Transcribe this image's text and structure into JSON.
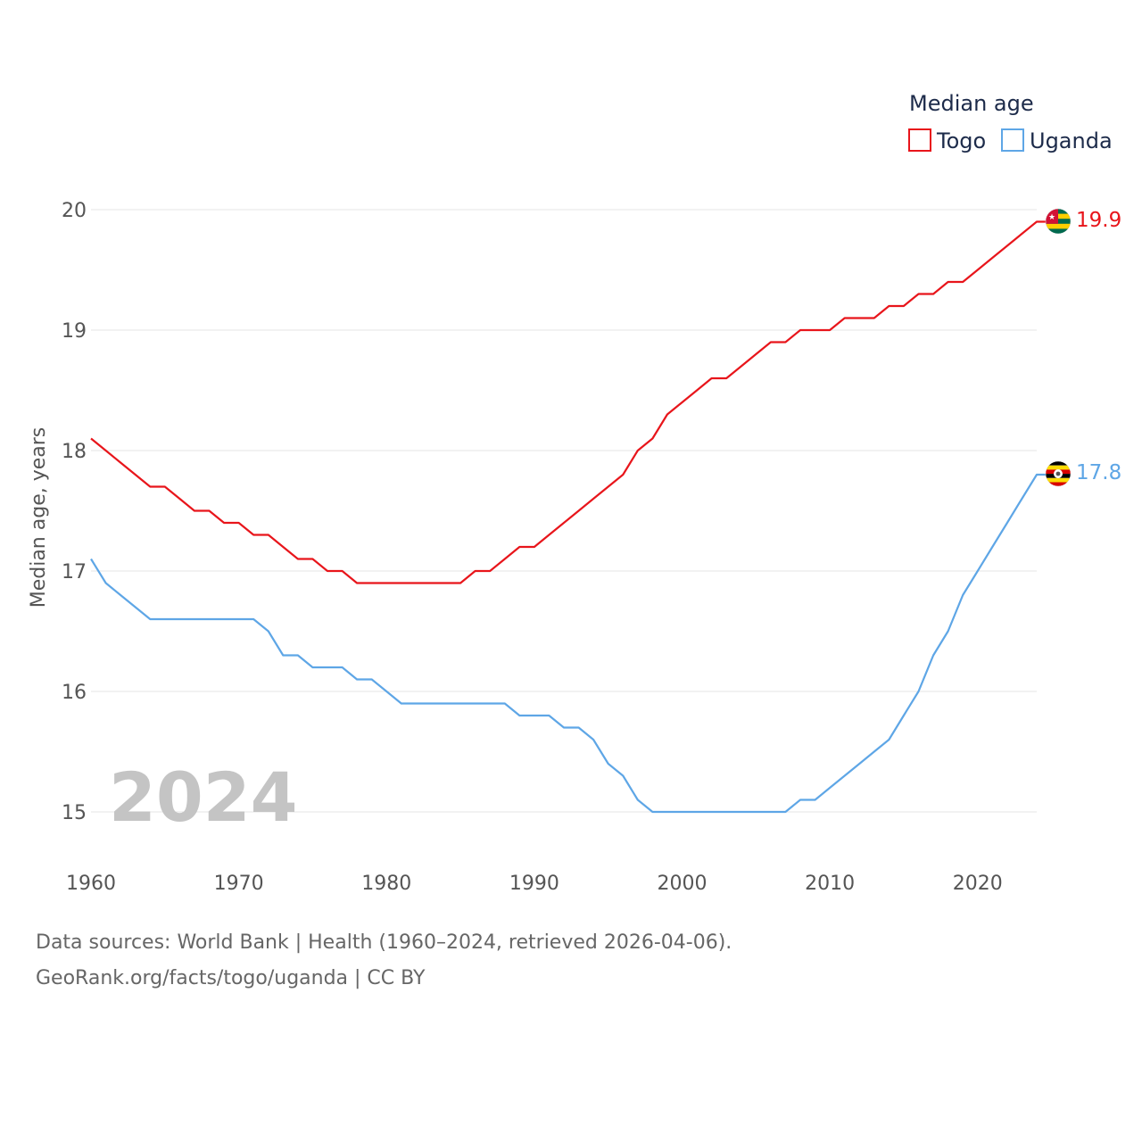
{
  "chart_data": {
    "type": "line",
    "legend": {
      "title": "Median age",
      "position": "top-right"
    },
    "ylabel": "Median age, years",
    "xlabel": "",
    "ylim": [
      14.5,
      20.5
    ],
    "yticks": [
      15,
      16,
      17,
      18,
      19,
      20
    ],
    "xlim": [
      1960,
      2024
    ],
    "xticks": [
      1960,
      1970,
      1980,
      1990,
      2000,
      2010,
      2020
    ],
    "grid": true,
    "watermark_year": "2024",
    "x": [
      1960,
      1961,
      1962,
      1963,
      1964,
      1965,
      1966,
      1967,
      1968,
      1969,
      1970,
      1971,
      1972,
      1973,
      1974,
      1975,
      1976,
      1977,
      1978,
      1979,
      1980,
      1981,
      1982,
      1983,
      1984,
      1985,
      1986,
      1987,
      1988,
      1989,
      1990,
      1991,
      1992,
      1993,
      1994,
      1995,
      1996,
      1997,
      1998,
      1999,
      2000,
      2001,
      2002,
      2003,
      2004,
      2005,
      2006,
      2007,
      2008,
      2009,
      2010,
      2011,
      2012,
      2013,
      2014,
      2015,
      2016,
      2017,
      2018,
      2019,
      2020,
      2021,
      2022,
      2023,
      2024
    ],
    "series": [
      {
        "name": "Togo",
        "color": "#e8151b",
        "end_label": "19.9",
        "flag": "togo-flag-icon",
        "values": [
          18.1,
          18.0,
          17.9,
          17.8,
          17.7,
          17.7,
          17.6,
          17.5,
          17.5,
          17.4,
          17.4,
          17.3,
          17.3,
          17.2,
          17.1,
          17.1,
          17.0,
          17.0,
          16.9,
          16.9,
          16.9,
          16.9,
          16.9,
          16.9,
          16.9,
          16.9,
          17.0,
          17.0,
          17.1,
          17.2,
          17.2,
          17.3,
          17.4,
          17.5,
          17.6,
          17.7,
          17.8,
          18.0,
          18.1,
          18.3,
          18.4,
          18.5,
          18.6,
          18.6,
          18.7,
          18.8,
          18.9,
          18.9,
          19.0,
          19.0,
          19.0,
          19.1,
          19.1,
          19.1,
          19.2,
          19.2,
          19.3,
          19.3,
          19.4,
          19.4,
          19.5,
          19.6,
          19.7,
          19.8,
          19.9
        ]
      },
      {
        "name": "Uganda",
        "color": "#5ea6e6",
        "end_label": "17.8",
        "flag": "uganda-flag-icon",
        "values": [
          17.1,
          16.9,
          16.8,
          16.7,
          16.6,
          16.6,
          16.6,
          16.6,
          16.6,
          16.6,
          16.6,
          16.6,
          16.5,
          16.3,
          16.3,
          16.2,
          16.2,
          16.2,
          16.1,
          16.1,
          16.0,
          15.9,
          15.9,
          15.9,
          15.9,
          15.9,
          15.9,
          15.9,
          15.9,
          15.8,
          15.8,
          15.8,
          15.7,
          15.7,
          15.6,
          15.4,
          15.3,
          15.1,
          15.0,
          15.0,
          15.0,
          15.0,
          15.0,
          15.0,
          15.0,
          15.0,
          15.0,
          15.0,
          15.1,
          15.1,
          15.2,
          15.3,
          15.4,
          15.5,
          15.6,
          15.8,
          16.0,
          16.3,
          16.5,
          16.8,
          17.0,
          17.2,
          17.4,
          17.6,
          17.8
        ]
      }
    ]
  },
  "footer": {
    "sources": "Data sources: World Bank | Health (1960–2024, retrieved 2026-04-06).",
    "credit": "GeoRank.org/facts/togo/uganda | CC BY"
  }
}
